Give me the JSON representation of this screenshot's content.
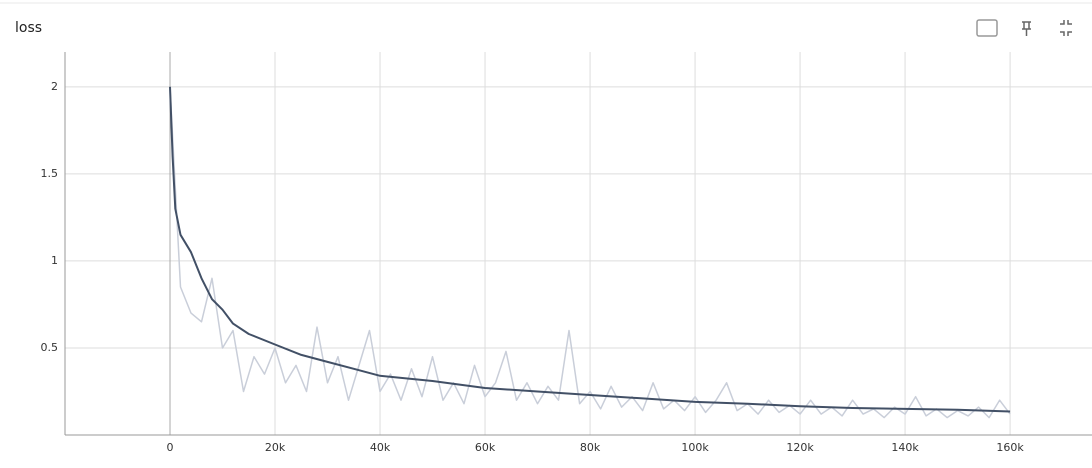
{
  "title": "loss",
  "chart_data": {
    "type": "line",
    "xlim": [
      -20000,
      175600
    ],
    "ylim": [
      0,
      2.2
    ],
    "xticks": [
      {
        "value": 0,
        "label": "0"
      },
      {
        "value": 20000,
        "label": "20k"
      },
      {
        "value": 40000,
        "label": "40k"
      },
      {
        "value": 60000,
        "label": "60k"
      },
      {
        "value": 80000,
        "label": "80k"
      },
      {
        "value": 100000,
        "label": "100k"
      },
      {
        "value": 120000,
        "label": "120k"
      },
      {
        "value": 140000,
        "label": "140k"
      },
      {
        "value": 160000,
        "label": "160k"
      }
    ],
    "yticks": [
      0.5,
      1,
      1.5,
      2
    ],
    "grid": true,
    "series": [
      {
        "color": "#c9ced9",
        "x": [
          0,
          2000,
          4000,
          6000,
          8000,
          10000,
          12000,
          14000,
          16000,
          18000,
          20000,
          22000,
          24000,
          26000,
          28000,
          30000,
          32000,
          34000,
          36000,
          38000,
          40000,
          42000,
          44000,
          46000,
          48000,
          50000,
          52000,
          54000,
          56000,
          58000,
          60000,
          62000,
          64000,
          66000,
          68000,
          70000,
          72000,
          74000,
          76000,
          78000,
          80000,
          82000,
          84000,
          86000,
          88000,
          90000,
          92000,
          94000,
          96000,
          98000,
          100000,
          102000,
          104000,
          106000,
          108000,
          110000,
          112000,
          114000,
          116000,
          118000,
          120000,
          122000,
          124000,
          126000,
          128000,
          130000,
          132000,
          134000,
          136000,
          138000,
          140000,
          142000,
          144000,
          146000,
          148000,
          150000,
          152000,
          154000,
          156000,
          158000,
          160000
        ],
        "values": [
          2.0,
          0.85,
          0.7,
          0.65,
          0.9,
          0.5,
          0.6,
          0.25,
          0.45,
          0.35,
          0.5,
          0.3,
          0.4,
          0.25,
          0.62,
          0.3,
          0.45,
          0.2,
          0.4,
          0.6,
          0.25,
          0.35,
          0.2,
          0.38,
          0.22,
          0.45,
          0.2,
          0.3,
          0.18,
          0.4,
          0.22,
          0.3,
          0.48,
          0.2,
          0.3,
          0.18,
          0.28,
          0.2,
          0.6,
          0.18,
          0.25,
          0.15,
          0.28,
          0.16,
          0.22,
          0.14,
          0.3,
          0.15,
          0.2,
          0.14,
          0.22,
          0.13,
          0.2,
          0.3,
          0.14,
          0.18,
          0.12,
          0.2,
          0.13,
          0.17,
          0.12,
          0.2,
          0.12,
          0.16,
          0.11,
          0.2,
          0.12,
          0.15,
          0.1,
          0.16,
          0.12,
          0.22,
          0.11,
          0.15,
          0.1,
          0.14,
          0.11,
          0.16,
          0.1,
          0.2,
          0.12
        ]
      },
      {
        "color": "#425066",
        "x": [
          0,
          500,
          1000,
          2000,
          4000,
          6000,
          8000,
          10000,
          12000,
          15000,
          20000,
          25000,
          30000,
          35000,
          40000,
          50000,
          60000,
          70000,
          80000,
          90000,
          100000,
          110000,
          120000,
          130000,
          140000,
          150000,
          160000
        ],
        "values": [
          2.0,
          1.6,
          1.3,
          1.15,
          1.05,
          0.9,
          0.78,
          0.72,
          0.64,
          0.58,
          0.52,
          0.46,
          0.42,
          0.38,
          0.34,
          0.31,
          0.27,
          0.25,
          0.23,
          0.21,
          0.19,
          0.18,
          0.165,
          0.155,
          0.15,
          0.145,
          0.135
        ]
      }
    ]
  }
}
